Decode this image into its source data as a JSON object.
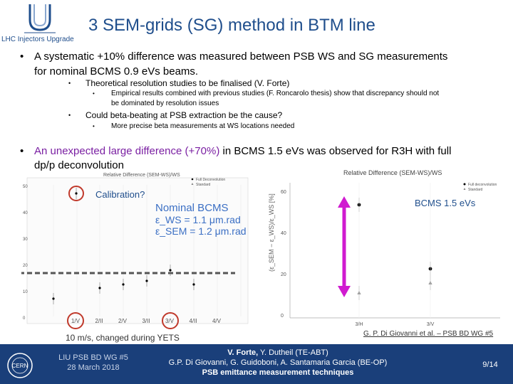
{
  "header": {
    "logo_text": "LHC Injectors Upgrade",
    "title": "3 SEM-grids (SG) method in BTM line"
  },
  "bullets": {
    "b1_line1": "A systematic +10% difference was measured between PSB WS and SG measurements",
    "b1_line2": "for nominal BCMS 0.9 eVs beams.",
    "b1_sub1": "Theoretical resolution studies to be finalised (V. Forte)",
    "b1_sub1_sub_line1": "Empirical results combined with previous studies (F. Roncarolo thesis) show that discrepancy should not",
    "b1_sub1_sub_line2": "be dominated by resolution issues",
    "b1_sub2": "Could beta-beating at PSB extraction be the cause?",
    "b1_sub2_sub": "More precise beta measurements at WS locations needed",
    "b2_highlight": "An unexpected large difference (+70%)",
    "b2_rest": " in BCMS 1.5 eVs was observed for R3H with full",
    "b2_line2": "dp/p deconvolution"
  },
  "left_chart": {
    "title": "Relative Difference (SEM-WS)/WS",
    "legend_full": "Full Deconvolution",
    "legend_std": "Standard",
    "yticks": [
      "50",
      "40",
      "30",
      "20",
      "10",
      "0"
    ],
    "xticks": [
      "1/V",
      "2/II",
      "2/V",
      "3/II",
      "3/V",
      "4/II",
      "4/V"
    ],
    "calibration_label": "Calibration?",
    "nominal_title": "Nominal BCMS",
    "eps_ws": "ε_WS = 1.1 μm.rad",
    "eps_sem": "ε_SEM = 1.2 μm.rad",
    "note": "10 m/s, changed during YETS"
  },
  "right_chart": {
    "title": "Relative Difference (SEM-WS)/WS",
    "legend_full": "Full deconvolution",
    "legend_std": "Standard",
    "yticks": [
      "60",
      "40",
      "20",
      "0"
    ],
    "xticks": [
      "3/H",
      "3/V"
    ],
    "beam_label": "BCMS 1.5 eVs",
    "credit": "G. P. Di Giovanni et al. – PSB BD WG #5"
  },
  "footer": {
    "left_line1": "LIU PSB BD WG #5",
    "left_line2": "28 March 2018",
    "center_line1_bold": "V. Forte,",
    "center_line1_rest": " Y. Dutheil (TE-ABT)",
    "center_line2": "G.P. Di Giovanni, G. Guidoboni, A. Santamaria Garcia (BE-OP)",
    "center_line3": "PSB emittance measurement techniques",
    "page": "9/14",
    "cern_text": "CERN"
  },
  "colors": {
    "brand_blue": "#1f4e8c",
    "highlight_purple": "#7a1fa2",
    "circle_red": "#c0392b",
    "arrow_magenta": "#d01bd0"
  }
}
